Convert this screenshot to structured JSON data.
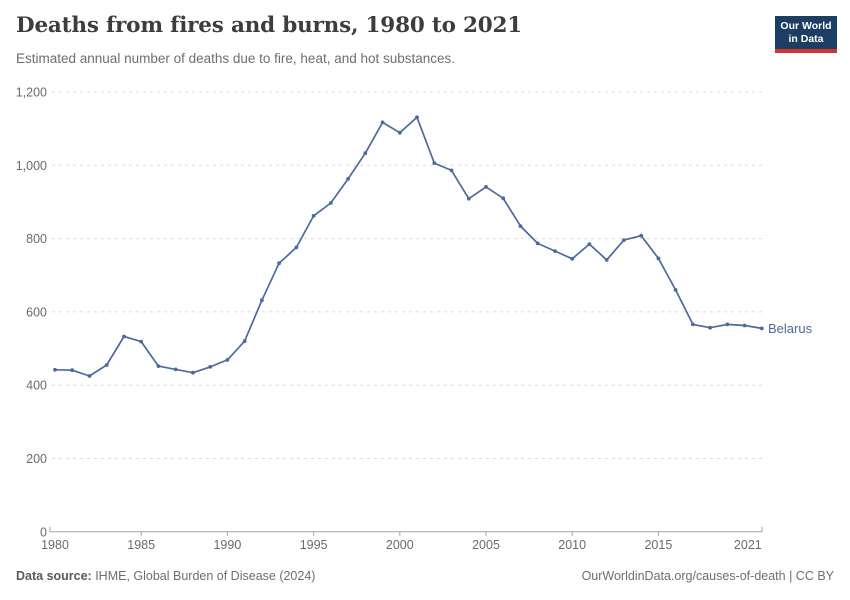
{
  "header": {
    "title": "Deaths from fires and burns, 1980 to 2021",
    "subtitle": "Estimated annual number of deaths due to fire, heat, and hot substances.",
    "logo": {
      "line1": "Our World",
      "line2": "in Data",
      "bg_color": "#1d3d63",
      "accent_color": "#cf342e"
    }
  },
  "chart_data": {
    "type": "line",
    "title": "Deaths from fires and burns, 1980 to 2021",
    "xlabel": "",
    "ylabel": "",
    "ylim": [
      0,
      1200
    ],
    "grid": "horizontal-dashed",
    "legend_position": "end-of-line-label",
    "x": [
      1980,
      1981,
      1982,
      1983,
      1984,
      1985,
      1986,
      1987,
      1988,
      1989,
      1990,
      1991,
      1992,
      1993,
      1994,
      1995,
      1996,
      1997,
      1998,
      1999,
      2000,
      2001,
      2002,
      2003,
      2004,
      2005,
      2006,
      2007,
      2008,
      2009,
      2010,
      2011,
      2012,
      2013,
      2014,
      2015,
      2016,
      2017,
      2018,
      2019,
      2020,
      2021
    ],
    "series": [
      {
        "name": "Belarus",
        "color": "#4C6A9C",
        "values": [
          442,
          441,
          425,
          455,
          533,
          519,
          452,
          443,
          434,
          450,
          469,
          520,
          632,
          733,
          776,
          862,
          897,
          963,
          1033,
          1117,
          1089,
          1131,
          1006,
          986,
          909,
          941,
          910,
          834,
          787,
          766,
          745,
          785,
          742,
          796,
          808,
          746,
          660,
          566,
          557,
          566,
          563,
          555
        ]
      }
    ],
    "yticks": [
      {
        "value": 0,
        "label": "0"
      },
      {
        "value": 200,
        "label": "200"
      },
      {
        "value": 400,
        "label": "400"
      },
      {
        "value": 600,
        "label": "600"
      },
      {
        "value": 800,
        "label": "800"
      },
      {
        "value": 1000,
        "label": "1,000"
      },
      {
        "value": 1200,
        "label": "1,200"
      }
    ],
    "xticks": [
      {
        "value": 1980,
        "label": "1980"
      },
      {
        "value": 1985,
        "label": "1985"
      },
      {
        "value": 1990,
        "label": "1990"
      },
      {
        "value": 1995,
        "label": "1995"
      },
      {
        "value": 2000,
        "label": "2000"
      },
      {
        "value": 2005,
        "label": "2005"
      },
      {
        "value": 2010,
        "label": "2010"
      },
      {
        "value": 2015,
        "label": "2015"
      },
      {
        "value": 2021,
        "label": "2021"
      }
    ],
    "colors": {
      "grid": "#dcdcdc",
      "axis": "#a3a3a3",
      "tick_label": "#6b6b6b"
    }
  },
  "footer": {
    "source_label": "Data source:",
    "source_value": " IHME, Global Burden of Disease (2024)",
    "attribution": "OurWorldinData.org/causes-of-death | CC BY"
  }
}
